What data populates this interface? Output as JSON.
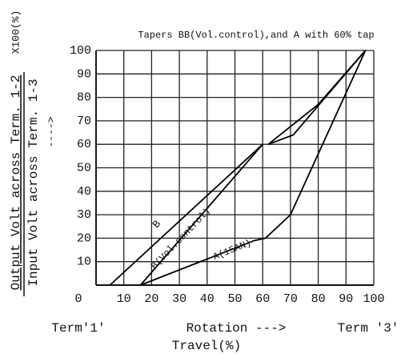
{
  "chart_data": {
    "type": "line",
    "title": "Tapers BB(Vol.control),and A with 60% tap",
    "y_label_numerator": "Output Volt across Term. 1-2",
    "y_label_denominator": "Input Volt across Term. 1-3",
    "y_label_factor": "X100(%)",
    "y_arrow": "---->",
    "x_label": "Rotation --->",
    "x_label_sub": "Travel(%)",
    "x_left_label": "Term'1'",
    "x_right_label": "Term '3'",
    "xlim": [
      0,
      100
    ],
    "ylim": [
      0,
      100
    ],
    "xticks": [
      0,
      10,
      20,
      30,
      40,
      50,
      60,
      70,
      80,
      90,
      100
    ],
    "yticks": [
      10,
      20,
      30,
      40,
      50,
      60,
      70,
      80,
      90,
      100
    ],
    "grid": true,
    "series": [
      {
        "name": "B",
        "color": "#000000",
        "x": [
          5,
          60,
          61,
          62,
          80,
          97
        ],
        "values": [
          0,
          60,
          null,
          60,
          77,
          100
        ]
      },
      {
        "name": "B(Vol.control)",
        "color": "#000000",
        "x": [
          16,
          60,
          61,
          62,
          71,
          97
        ],
        "values": [
          0,
          60,
          null,
          60,
          64,
          100
        ]
      },
      {
        "name": "A(15AN)",
        "color": "#000000",
        "x": [
          16,
          57,
          61,
          70,
          97
        ],
        "values": [
          0,
          19,
          20,
          30,
          100
        ]
      }
    ]
  }
}
